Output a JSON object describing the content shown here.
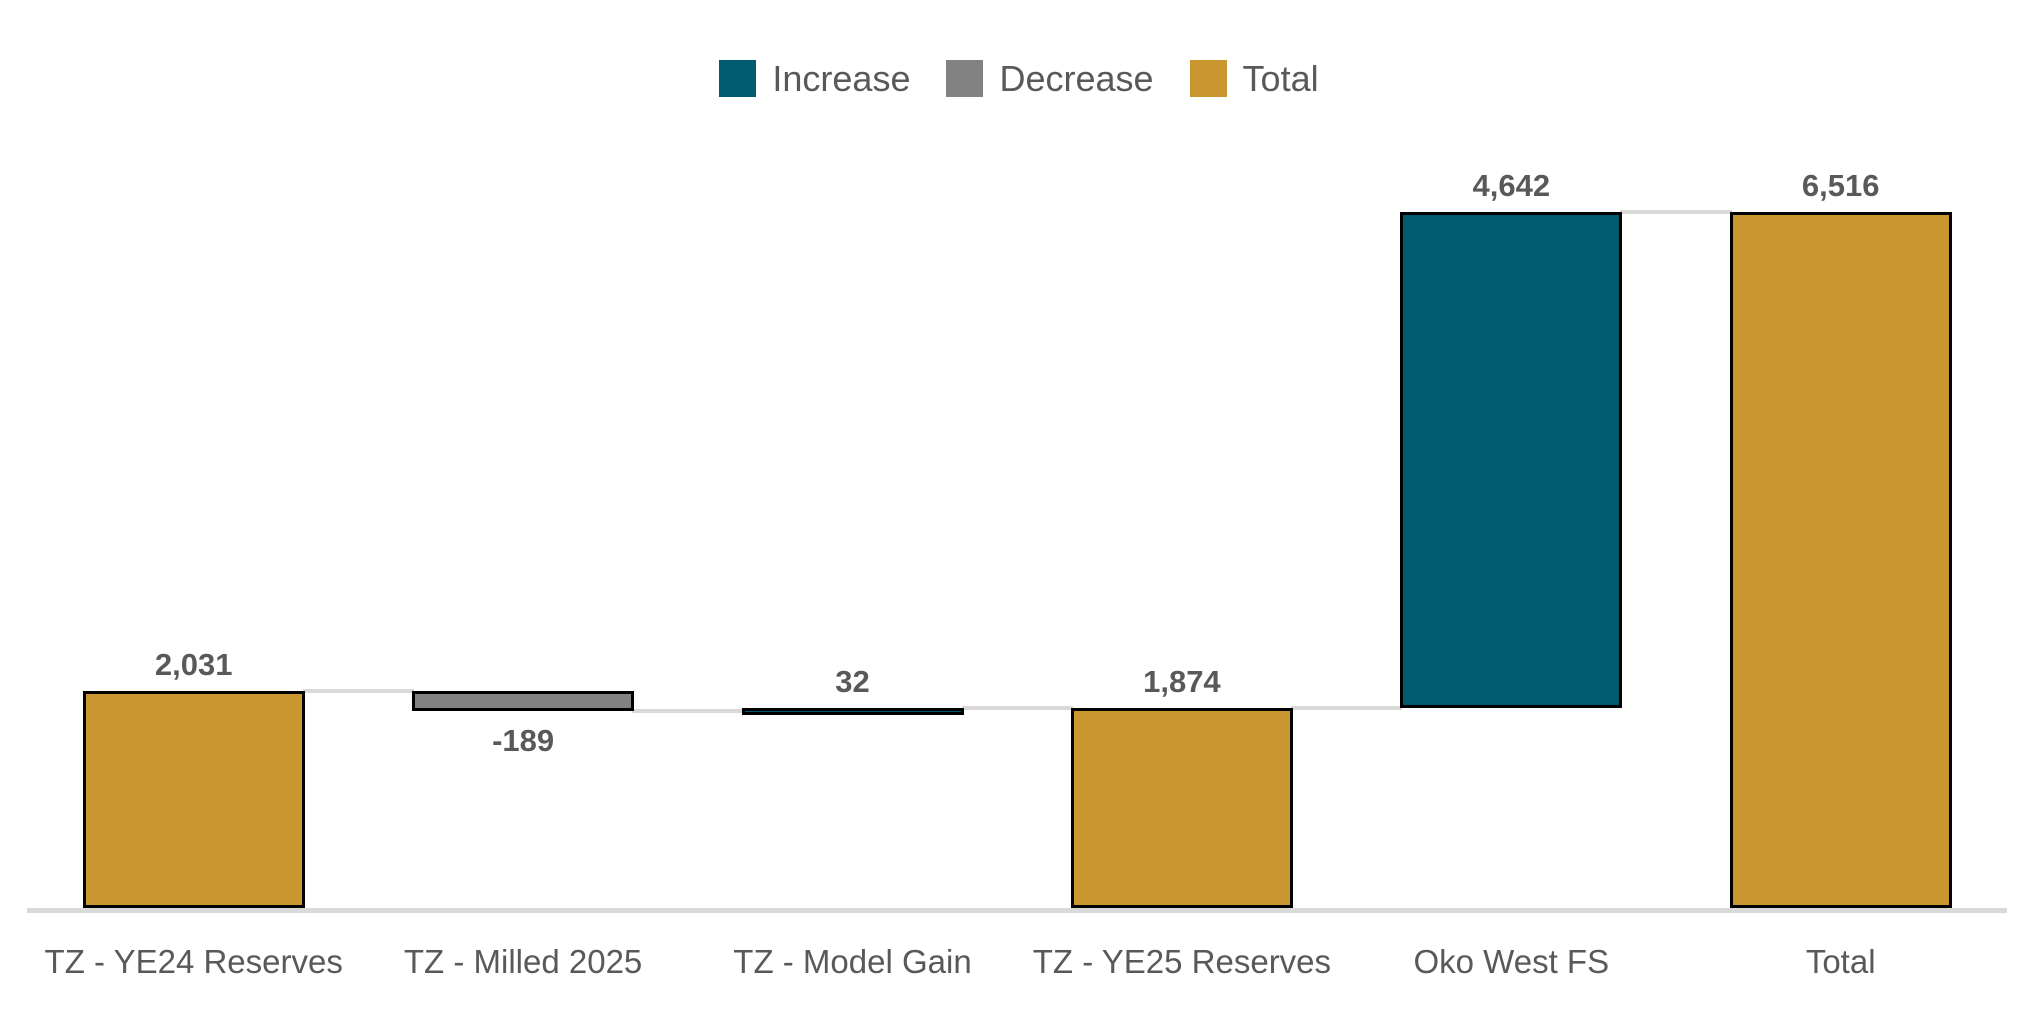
{
  "chart_data": {
    "type": "bar",
    "subtype": "waterfall",
    "categories": [
      "TZ - YE24 Reserves",
      "TZ - Milled 2025",
      "TZ - Model Gain",
      "TZ - YE25 Reserves",
      "Oko West FS",
      "Total"
    ],
    "values": [
      2031,
      -189,
      32,
      1874,
      4642,
      6516
    ],
    "bar_kinds": [
      "total",
      "decrease",
      "increase",
      "total",
      "increase",
      "total"
    ],
    "data_labels": [
      "2,031",
      "-189",
      "32",
      "1,874",
      "4,642",
      "6,516"
    ],
    "running_totals": [
      2031,
      1842,
      1874,
      1874,
      6516,
      6516
    ],
    "title": "",
    "xlabel": "",
    "ylabel": "",
    "ylim": [
      0,
      6516
    ],
    "grid": false,
    "legend_position": "top",
    "legend": [
      {
        "label": "Increase",
        "color": "#005A70"
      },
      {
        "label": "Decrease",
        "color": "#828282"
      },
      {
        "label": "Total",
        "color": "#C9962F"
      }
    ],
    "colors": {
      "increase": "#005A70",
      "decrease": "#828282",
      "total": "#C9962F",
      "bar_border": "#000000",
      "connector": "#D9D9D9",
      "axis_line": "#D9D9D9",
      "label_text": "#595959"
    }
  }
}
